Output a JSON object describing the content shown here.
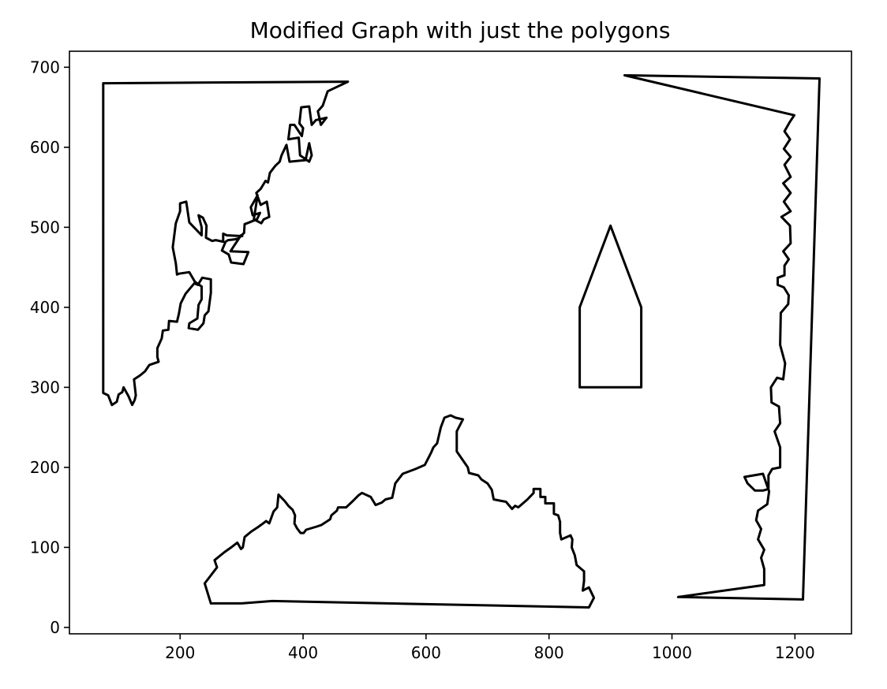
{
  "chart_data": {
    "type": "line",
    "title": "Modified Graph with just the polygons",
    "xlabel": "",
    "ylabel": "",
    "xlim": [
      20,
      1292
    ],
    "ylim": [
      -8,
      720
    ],
    "x_ticks": [
      200,
      400,
      600,
      800,
      1000,
      1200
    ],
    "y_ticks": [
      0,
      100,
      200,
      300,
      400,
      500,
      600,
      700
    ],
    "grid": false,
    "line_color": "#000000",
    "series": [
      {
        "points": [
          [
            75,
            680
          ],
          [
            473,
            682
          ],
          [
            440,
            670
          ],
          [
            432,
            652
          ],
          [
            424,
            645
          ],
          [
            429,
            628
          ],
          [
            438,
            637
          ],
          [
            421,
            634
          ],
          [
            414,
            628
          ],
          [
            410,
            651
          ],
          [
            397,
            650
          ],
          [
            394,
            630
          ],
          [
            400,
            624
          ],
          [
            398,
            614
          ],
          [
            386,
            628
          ],
          [
            379,
            628
          ],
          [
            376,
            610
          ],
          [
            393,
            612
          ],
          [
            395,
            590
          ],
          [
            410,
            582
          ],
          [
            414,
            590
          ],
          [
            410,
            605
          ],
          [
            404,
            584
          ],
          [
            378,
            582
          ],
          [
            373,
            603
          ],
          [
            365,
            590
          ],
          [
            362,
            582
          ],
          [
            355,
            577
          ],
          [
            350,
            572
          ],
          [
            346,
            568
          ],
          [
            343,
            556
          ],
          [
            339,
            558
          ],
          [
            331,
            548
          ],
          [
            324,
            543
          ],
          [
            331,
            528
          ],
          [
            341,
            532
          ],
          [
            345,
            513
          ],
          [
            336,
            510
          ],
          [
            332,
            505
          ],
          [
            320,
            510
          ],
          [
            326,
            540
          ],
          [
            315,
            525
          ],
          [
            318,
            515
          ],
          [
            330,
            518
          ],
          [
            325,
            510
          ],
          [
            309,
            505
          ],
          [
            305,
            504
          ],
          [
            304,
            493
          ],
          [
            295,
            486
          ],
          [
            289,
            485
          ],
          [
            278,
            484
          ],
          [
            274,
            482
          ],
          [
            268,
            471
          ],
          [
            279,
            466
          ],
          [
            283,
            456
          ],
          [
            303,
            454
          ],
          [
            311,
            469
          ],
          [
            282,
            470
          ],
          [
            287,
            476
          ],
          [
            299,
            490
          ],
          [
            301,
            489
          ],
          [
            276,
            490
          ],
          [
            270,
            492
          ],
          [
            270,
            482
          ],
          [
            258,
            484
          ],
          [
            252,
            483
          ],
          [
            242,
            487
          ],
          [
            243,
            502
          ],
          [
            237,
            512
          ],
          [
            230,
            515
          ],
          [
            235,
            500
          ],
          [
            235,
            490
          ],
          [
            215,
            506
          ],
          [
            210,
            532
          ],
          [
            200,
            530
          ],
          [
            200,
            520
          ],
          [
            193,
            505
          ],
          [
            188,
            475
          ],
          [
            193,
            455
          ],
          [
            195,
            441
          ],
          [
            198,
            442
          ],
          [
            215,
            444
          ],
          [
            224,
            432
          ],
          [
            235,
            426
          ],
          [
            235,
            410
          ],
          [
            230,
            403
          ],
          [
            228,
            386
          ],
          [
            215,
            380
          ],
          [
            214,
            374
          ],
          [
            229,
            372
          ],
          [
            238,
            380
          ],
          [
            240,
            390
          ],
          [
            246,
            395
          ],
          [
            250,
            418
          ],
          [
            250,
            435
          ],
          [
            236,
            437
          ],
          [
            229,
            428
          ],
          [
            223,
            430
          ],
          [
            209,
            417
          ],
          [
            201,
            405
          ],
          [
            198,
            392
          ],
          [
            195,
            382
          ],
          [
            182,
            383
          ],
          [
            181,
            372
          ],
          [
            172,
            371
          ],
          [
            170,
            361
          ],
          [
            163,
            349
          ],
          [
            163,
            338
          ],
          [
            165,
            332
          ],
          [
            150,
            328
          ],
          [
            143,
            320
          ],
          [
            135,
            315
          ],
          [
            125,
            310
          ],
          [
            128,
            290
          ],
          [
            126,
            284
          ],
          [
            122,
            278
          ],
          [
            116,
            289
          ],
          [
            108,
            300
          ],
          [
            106,
            294
          ],
          [
            100,
            291
          ],
          [
            97,
            282
          ],
          [
            89,
            278
          ],
          [
            83,
            290
          ],
          [
            75,
            293
          ],
          [
            75,
            680
          ]
        ]
      },
      {
        "points": [
          [
            900,
            502
          ],
          [
            950,
            400
          ],
          [
            950,
            300
          ],
          [
            850,
            300
          ],
          [
            850,
            400
          ],
          [
            900,
            502
          ]
        ]
      },
      {
        "points": [
          [
            923,
            690
          ],
          [
            1240,
            686
          ],
          [
            1213,
            35
          ],
          [
            1010,
            38
          ],
          [
            1150,
            53
          ],
          [
            1150,
            73
          ],
          [
            1145,
            87
          ],
          [
            1150,
            97
          ],
          [
            1140,
            110
          ],
          [
            1145,
            123
          ],
          [
            1137,
            134
          ],
          [
            1140,
            146
          ],
          [
            1155,
            154
          ],
          [
            1158,
            170
          ],
          [
            1148,
            192
          ],
          [
            1118,
            188
          ],
          [
            1123,
            180
          ],
          [
            1135,
            171
          ],
          [
            1148,
            171
          ],
          [
            1157,
            173
          ],
          [
            1157,
            190
          ],
          [
            1163,
            198
          ],
          [
            1176,
            200
          ],
          [
            1176,
            225
          ],
          [
            1167,
            245
          ],
          [
            1176,
            255
          ],
          [
            1174,
            276
          ],
          [
            1162,
            281
          ],
          [
            1161,
            300
          ],
          [
            1171,
            312
          ],
          [
            1181,
            310
          ],
          [
            1184,
            330
          ],
          [
            1176,
            353
          ],
          [
            1177,
            393
          ],
          [
            1189,
            404
          ],
          [
            1190,
            415
          ],
          [
            1182,
            425
          ],
          [
            1172,
            428
          ],
          [
            1172,
            437
          ],
          [
            1183,
            440
          ],
          [
            1183,
            452
          ],
          [
            1190,
            460
          ],
          [
            1181,
            470
          ],
          [
            1193,
            480
          ],
          [
            1192,
            502
          ],
          [
            1178,
            513
          ],
          [
            1193,
            520
          ],
          [
            1182,
            532
          ],
          [
            1193,
            543
          ],
          [
            1181,
            555
          ],
          [
            1193,
            563
          ],
          [
            1183,
            578
          ],
          [
            1193,
            588
          ],
          [
            1182,
            598
          ],
          [
            1192,
            610
          ],
          [
            1183,
            620
          ],
          [
            1192,
            632
          ],
          [
            1199,
            640
          ],
          [
            923,
            690
          ]
        ]
      },
      {
        "points": [
          [
            250,
            30
          ],
          [
            300,
            30
          ],
          [
            350,
            33
          ],
          [
            865,
            25
          ],
          [
            873,
            37
          ],
          [
            868,
            45
          ],
          [
            865,
            50
          ],
          [
            855,
            46
          ],
          [
            857,
            58
          ],
          [
            857,
            70
          ],
          [
            845,
            78
          ],
          [
            842,
            90
          ],
          [
            837,
            100
          ],
          [
            838,
            110
          ],
          [
            835,
            115
          ],
          [
            820,
            110
          ],
          [
            818,
            118
          ],
          [
            818,
            132
          ],
          [
            815,
            140
          ],
          [
            808,
            142
          ],
          [
            808,
            155
          ],
          [
            794,
            155
          ],
          [
            794,
            163
          ],
          [
            786,
            163
          ],
          [
            786,
            173
          ],
          [
            775,
            173
          ],
          [
            775,
            168
          ],
          [
            765,
            160
          ],
          [
            750,
            150
          ],
          [
            745,
            152
          ],
          [
            740,
            148
          ],
          [
            730,
            157
          ],
          [
            723,
            158
          ],
          [
            710,
            160
          ],
          [
            707,
            172
          ],
          [
            700,
            180
          ],
          [
            690,
            185
          ],
          [
            685,
            190
          ],
          [
            670,
            193
          ],
          [
            668,
            200
          ],
          [
            650,
            220
          ],
          [
            650,
            245
          ],
          [
            660,
            260
          ],
          [
            648,
            262
          ],
          [
            640,
            265
          ],
          [
            630,
            262
          ],
          [
            624,
            250
          ],
          [
            618,
            230
          ],
          [
            612,
            225
          ],
          [
            608,
            218
          ],
          [
            604,
            212
          ],
          [
            598,
            203
          ],
          [
            583,
            198
          ],
          [
            562,
            192
          ],
          [
            550,
            180
          ],
          [
            545,
            162
          ],
          [
            534,
            160
          ],
          [
            528,
            156
          ],
          [
            518,
            153
          ],
          [
            510,
            163
          ],
          [
            496,
            168
          ],
          [
            490,
            165
          ],
          [
            481,
            158
          ],
          [
            470,
            150
          ],
          [
            457,
            150
          ],
          [
            455,
            146
          ],
          [
            446,
            140
          ],
          [
            444,
            135
          ],
          [
            430,
            128
          ],
          [
            422,
            126
          ],
          [
            405,
            122
          ],
          [
            401,
            118
          ],
          [
            396,
            118
          ],
          [
            390,
            124
          ],
          [
            386,
            130
          ],
          [
            387,
            140
          ],
          [
            383,
            147
          ],
          [
            376,
            152
          ],
          [
            370,
            158
          ],
          [
            360,
            166
          ],
          [
            358,
            150
          ],
          [
            352,
            145
          ],
          [
            345,
            130
          ],
          [
            340,
            133
          ],
          [
            335,
            130
          ],
          [
            326,
            125
          ],
          [
            316,
            120
          ],
          [
            305,
            113
          ],
          [
            302,
            100
          ],
          [
            299,
            98
          ],
          [
            293,
            106
          ],
          [
            283,
            100
          ],
          [
            272,
            94
          ],
          [
            256,
            84
          ],
          [
            260,
            75
          ],
          [
            250,
            65
          ],
          [
            240,
            55
          ],
          [
            250,
            30
          ]
        ]
      }
    ]
  }
}
